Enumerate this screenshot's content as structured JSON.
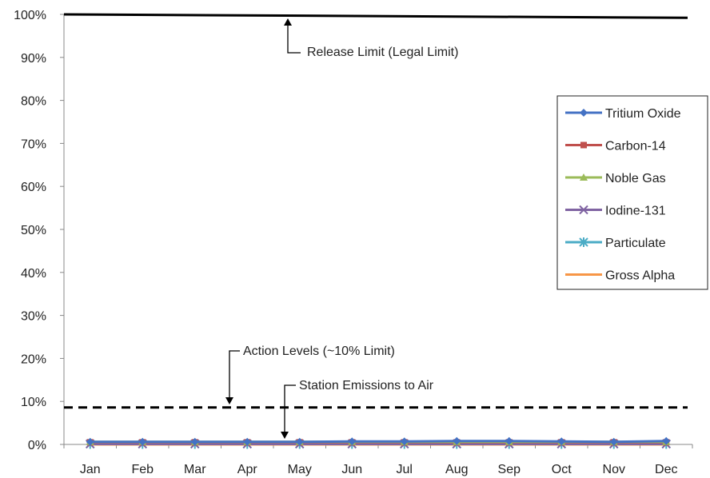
{
  "chart_data": {
    "type": "line",
    "title": "",
    "xlabel": "",
    "ylabel": "",
    "categories": [
      "Jan",
      "Feb",
      "Mar",
      "Apr",
      "May",
      "Jun",
      "Jul",
      "Aug",
      "Sep",
      "Oct",
      "Nov",
      "Dec"
    ],
    "y_ticks": [
      "0%",
      "10%",
      "20%",
      "30%",
      "40%",
      "50%",
      "60%",
      "70%",
      "80%",
      "90%",
      "100%"
    ],
    "ylim": [
      0,
      100
    ],
    "grid": false,
    "legend_position": "right",
    "series": [
      {
        "name": "Tritium Oxide",
        "color": "#4472C4",
        "marker": "diamond",
        "values": [
          0.6,
          0.6,
          0.6,
          0.6,
          0.6,
          0.7,
          0.7,
          0.8,
          0.8,
          0.7,
          0.6,
          0.8
        ]
      },
      {
        "name": "Carbon-14",
        "color": "#C0504D",
        "marker": "square",
        "values": [
          0.5,
          0.5,
          0.5,
          0.5,
          0.5,
          0.5,
          0.5,
          0.5,
          0.5,
          0.5,
          0.5,
          0.5
        ]
      },
      {
        "name": "Noble Gas",
        "color": "#9BBB59",
        "marker": "triangle",
        "values": [
          0.6,
          0.6,
          0.6,
          0.6,
          0.6,
          0.6,
          0.6,
          0.6,
          0.6,
          0.6,
          0.6,
          0.6
        ]
      },
      {
        "name": "Iodine-131",
        "color": "#8064A2",
        "marker": "x",
        "values": [
          0.1,
          0.1,
          0.1,
          0.1,
          0.1,
          0.1,
          0.1,
          0.1,
          0.1,
          0.1,
          0.1,
          0.1
        ]
      },
      {
        "name": "Particulate",
        "color": "#4BACC6",
        "marker": "star",
        "values": [
          0.1,
          0.1,
          0.1,
          0.1,
          0.1,
          0.1,
          0.1,
          0.1,
          0.1,
          0.1,
          0.1,
          0.1
        ]
      },
      {
        "name": "Gross Alpha",
        "color": "#F79646",
        "marker": "none",
        "values": [
          0.0,
          0.0,
          0.0,
          0.0,
          0.0,
          0.0,
          0.0,
          0.0,
          0.0,
          0.0,
          0.0,
          0.0
        ]
      }
    ],
    "reference_lines": [
      {
        "name": "release-limit",
        "value_start": 100,
        "value_end": 99.2,
        "style": "solid",
        "color": "#000000"
      },
      {
        "name": "action-level",
        "value_start": 8.6,
        "value_end": 8.6,
        "style": "dashed",
        "color": "#000000"
      }
    ],
    "annotations": {
      "release_limit": "Release Limit (Legal Limit)",
      "action_levels": "Action Levels (~10% Limit)",
      "station_emissions": "Station Emissions to Air"
    }
  }
}
